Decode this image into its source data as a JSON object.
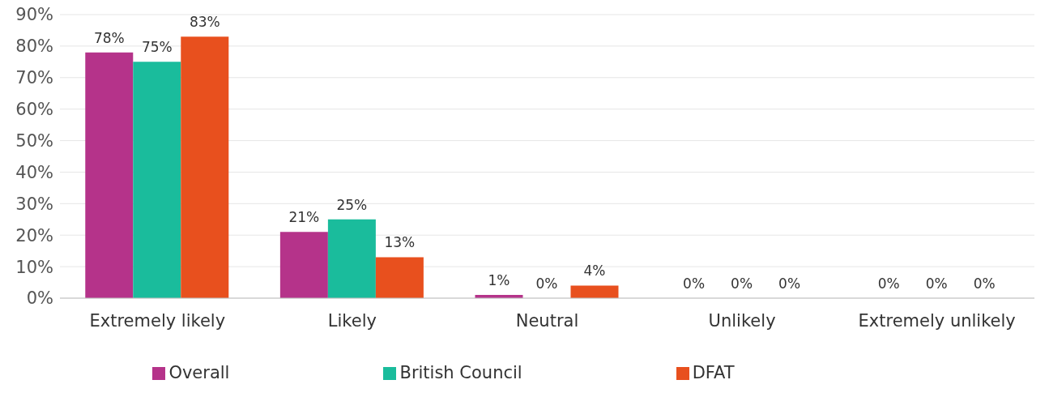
{
  "chart_data": {
    "type": "bar",
    "categories": [
      "Extremely likely",
      "Likely",
      "Neutral",
      "Unlikely",
      "Extremely unlikely"
    ],
    "series": [
      {
        "name": "Overall",
        "color": "#b5338a",
        "values": [
          78,
          21,
          1,
          0,
          0
        ],
        "value_labels": [
          "78%",
          "21%",
          "1%",
          "0%",
          "0%"
        ]
      },
      {
        "name": "British Council",
        "color": "#1abc9c",
        "values": [
          75,
          25,
          0,
          0,
          0
        ],
        "value_labels": [
          "75%",
          "25%",
          "0%",
          "0%",
          "0%"
        ]
      },
      {
        "name": "DFAT",
        "color": "#e8501e",
        "values": [
          83,
          13,
          4,
          0,
          0
        ],
        "value_labels": [
          "83%",
          "13%",
          "4%",
          "0%",
          "0%"
        ]
      }
    ],
    "ylim": [
      0,
      90
    ],
    "yticks": [
      {
        "value": 0,
        "label": "0%"
      },
      {
        "value": 10,
        "label": "10%"
      },
      {
        "value": 20,
        "label": "20%"
      },
      {
        "value": 30,
        "label": "30%"
      },
      {
        "value": 40,
        "label": "40%"
      },
      {
        "value": 50,
        "label": "50%"
      },
      {
        "value": 60,
        "label": "60%"
      },
      {
        "value": 70,
        "label": "70%"
      },
      {
        "value": 80,
        "label": "80%"
      },
      {
        "value": 90,
        "label": "90%"
      }
    ],
    "grid": "y",
    "legend": "bottom"
  }
}
